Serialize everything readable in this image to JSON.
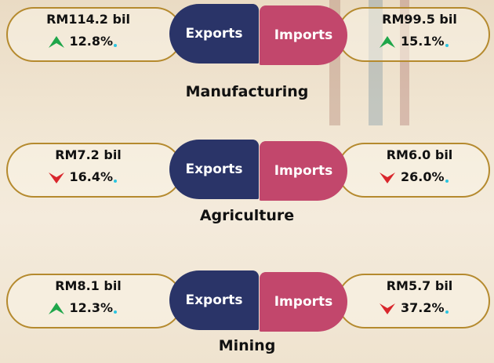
{
  "labels": {
    "exports": "Exports",
    "imports": "Imports"
  },
  "sections": [
    {
      "name": "Manufacturing",
      "exports": {
        "value": "RM114.2 bil",
        "change": "12.8%",
        "direction": "up"
      },
      "imports": {
        "value": "RM99.5 bil",
        "change": "15.1%",
        "direction": "up"
      }
    },
    {
      "name": "Agriculture",
      "exports": {
        "value": "RM7.2 bil",
        "change": "16.4%",
        "direction": "down"
      },
      "imports": {
        "value": "RM6.0 bil",
        "change": "26.0%",
        "direction": "down"
      }
    },
    {
      "name": "Mining",
      "exports": {
        "value": "RM8.1 bil",
        "change": "12.3%",
        "direction": "up"
      },
      "imports": {
        "value": "RM5.7 bil",
        "change": "37.2%",
        "direction": "down"
      }
    }
  ]
}
